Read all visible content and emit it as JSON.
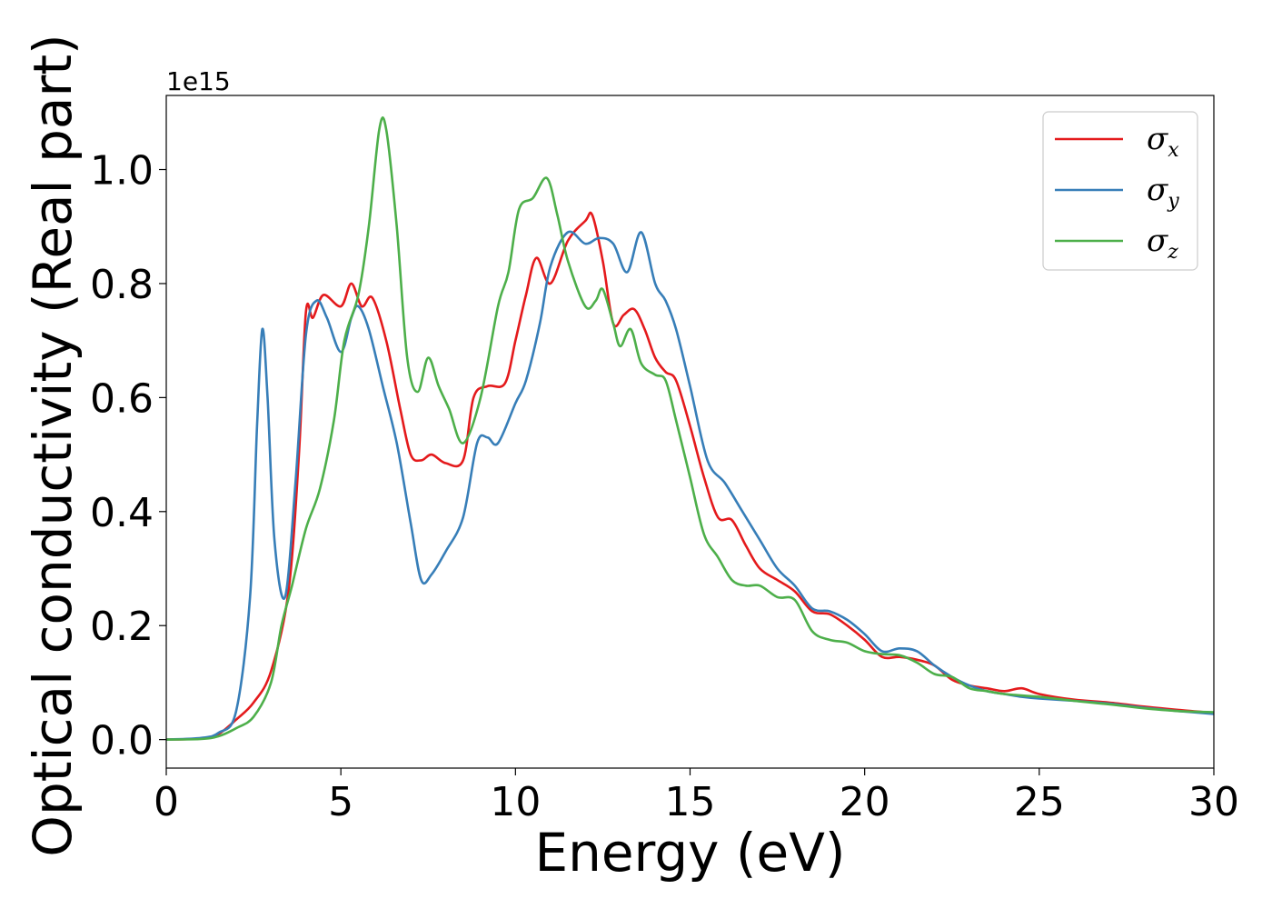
{
  "chart_data": {
    "type": "line",
    "title": "",
    "xlabel": "Energy (eV)",
    "ylabel": "Optical conductivity (Real part)",
    "y_offset_text": "1e15",
    "xlim": [
      0,
      30
    ],
    "ylim": [
      -0.05,
      1.13
    ],
    "xticks": [
      0,
      5,
      10,
      15,
      20,
      25,
      30
    ],
    "xtick_labels": [
      "0",
      "5",
      "10",
      "15",
      "20",
      "25",
      "30"
    ],
    "yticks": [
      0.0,
      0.2,
      0.4,
      0.6,
      0.8,
      1.0
    ],
    "ytick_labels": [
      "0.0",
      "0.2",
      "0.4",
      "0.6",
      "0.8",
      "1.0"
    ],
    "grid": false,
    "legend_position": "top-right",
    "series": [
      {
        "name": "σx",
        "symbol": "σ",
        "subscript": "x",
        "color": "#e41a1c",
        "points": [
          [
            0,
            0
          ],
          [
            1,
            0.002
          ],
          [
            1.5,
            0.01
          ],
          [
            2,
            0.035
          ],
          [
            2.5,
            0.065
          ],
          [
            3,
            0.12
          ],
          [
            3.5,
            0.26
          ],
          [
            3.8,
            0.5
          ],
          [
            4,
            0.75
          ],
          [
            4.2,
            0.74
          ],
          [
            4.5,
            0.78
          ],
          [
            5,
            0.76
          ],
          [
            5.3,
            0.8
          ],
          [
            5.6,
            0.76
          ],
          [
            5.9,
            0.775
          ],
          [
            6.3,
            0.7
          ],
          [
            6.7,
            0.58
          ],
          [
            7,
            0.5
          ],
          [
            7.3,
            0.49
          ],
          [
            7.6,
            0.5
          ],
          [
            8,
            0.485
          ],
          [
            8.5,
            0.49
          ],
          [
            8.8,
            0.6
          ],
          [
            9.2,
            0.62
          ],
          [
            9.7,
            0.625
          ],
          [
            10,
            0.7
          ],
          [
            10.3,
            0.78
          ],
          [
            10.6,
            0.845
          ],
          [
            11,
            0.8
          ],
          [
            11.5,
            0.875
          ],
          [
            12,
            0.91
          ],
          [
            12.2,
            0.92
          ],
          [
            12.5,
            0.84
          ],
          [
            12.8,
            0.73
          ],
          [
            13.1,
            0.745
          ],
          [
            13.4,
            0.755
          ],
          [
            13.7,
            0.72
          ],
          [
            14,
            0.67
          ],
          [
            14.3,
            0.645
          ],
          [
            14.6,
            0.63
          ],
          [
            15,
            0.55
          ],
          [
            15.4,
            0.46
          ],
          [
            15.8,
            0.39
          ],
          [
            16.2,
            0.385
          ],
          [
            16.6,
            0.34
          ],
          [
            17,
            0.3
          ],
          [
            17.5,
            0.28
          ],
          [
            18,
            0.26
          ],
          [
            18.5,
            0.225
          ],
          [
            19,
            0.22
          ],
          [
            19.5,
            0.2
          ],
          [
            20,
            0.175
          ],
          [
            20.5,
            0.145
          ],
          [
            21,
            0.145
          ],
          [
            21.5,
            0.14
          ],
          [
            22,
            0.13
          ],
          [
            22.5,
            0.105
          ],
          [
            23,
            0.095
          ],
          [
            23.5,
            0.09
          ],
          [
            24,
            0.085
          ],
          [
            24.5,
            0.09
          ],
          [
            25,
            0.08
          ],
          [
            26,
            0.07
          ],
          [
            27,
            0.065
          ],
          [
            28,
            0.058
          ],
          [
            29,
            0.052
          ],
          [
            30,
            0.047
          ]
        ]
      },
      {
        "name": "σy",
        "symbol": "σ",
        "subscript": "y",
        "color": "#377eb8",
        "points": [
          [
            0,
            0
          ],
          [
            1,
            0.003
          ],
          [
            1.5,
            0.012
          ],
          [
            2,
            0.05
          ],
          [
            2.4,
            0.25
          ],
          [
            2.6,
            0.55
          ],
          [
            2.75,
            0.72
          ],
          [
            2.9,
            0.6
          ],
          [
            3.1,
            0.35
          ],
          [
            3.4,
            0.25
          ],
          [
            3.7,
            0.45
          ],
          [
            4,
            0.71
          ],
          [
            4.3,
            0.77
          ],
          [
            4.6,
            0.74
          ],
          [
            5,
            0.68
          ],
          [
            5.3,
            0.74
          ],
          [
            5.5,
            0.76
          ],
          [
            5.8,
            0.72
          ],
          [
            6.2,
            0.62
          ],
          [
            6.6,
            0.52
          ],
          [
            7,
            0.38
          ],
          [
            7.3,
            0.28
          ],
          [
            7.6,
            0.29
          ],
          [
            8,
            0.33
          ],
          [
            8.5,
            0.39
          ],
          [
            8.9,
            0.52
          ],
          [
            9.2,
            0.53
          ],
          [
            9.5,
            0.52
          ],
          [
            10,
            0.59
          ],
          [
            10.3,
            0.63
          ],
          [
            10.7,
            0.73
          ],
          [
            11,
            0.83
          ],
          [
            11.5,
            0.89
          ],
          [
            12,
            0.87
          ],
          [
            12.4,
            0.88
          ],
          [
            12.8,
            0.87
          ],
          [
            13.2,
            0.82
          ],
          [
            13.6,
            0.89
          ],
          [
            14,
            0.8
          ],
          [
            14.3,
            0.77
          ],
          [
            14.6,
            0.72
          ],
          [
            15,
            0.62
          ],
          [
            15.5,
            0.49
          ],
          [
            16,
            0.45
          ],
          [
            16.5,
            0.4
          ],
          [
            17,
            0.35
          ],
          [
            17.5,
            0.3
          ],
          [
            18,
            0.27
          ],
          [
            18.5,
            0.23
          ],
          [
            19,
            0.225
          ],
          [
            19.5,
            0.21
          ],
          [
            20,
            0.185
          ],
          [
            20.5,
            0.155
          ],
          [
            21,
            0.16
          ],
          [
            21.5,
            0.155
          ],
          [
            22,
            0.13
          ],
          [
            22.5,
            0.11
          ],
          [
            23,
            0.095
          ],
          [
            23.5,
            0.085
          ],
          [
            24,
            0.08
          ],
          [
            24.5,
            0.075
          ],
          [
            25,
            0.072
          ],
          [
            26,
            0.068
          ],
          [
            27,
            0.063
          ],
          [
            28,
            0.056
          ],
          [
            29,
            0.05
          ],
          [
            30,
            0.045
          ]
        ]
      },
      {
        "name": "σz",
        "symbol": "σ",
        "subscript": "z",
        "color": "#4daf4a",
        "points": [
          [
            0,
            0
          ],
          [
            1,
            0.001
          ],
          [
            1.5,
            0.006
          ],
          [
            2,
            0.02
          ],
          [
            2.5,
            0.04
          ],
          [
            3,
            0.1
          ],
          [
            3.3,
            0.2
          ],
          [
            3.6,
            0.27
          ],
          [
            4,
            0.37
          ],
          [
            4.4,
            0.44
          ],
          [
            4.8,
            0.56
          ],
          [
            5.1,
            0.7
          ],
          [
            5.5,
            0.78
          ],
          [
            5.8,
            0.9
          ],
          [
            6.1,
            1.07
          ],
          [
            6.3,
            1.07
          ],
          [
            6.6,
            0.9
          ],
          [
            6.9,
            0.67
          ],
          [
            7.2,
            0.61
          ],
          [
            7.5,
            0.67
          ],
          [
            7.8,
            0.62
          ],
          [
            8.1,
            0.58
          ],
          [
            8.5,
            0.52
          ],
          [
            9,
            0.6
          ],
          [
            9.5,
            0.76
          ],
          [
            9.8,
            0.82
          ],
          [
            10.1,
            0.93
          ],
          [
            10.5,
            0.95
          ],
          [
            10.9,
            0.985
          ],
          [
            11.2,
            0.92
          ],
          [
            11.5,
            0.84
          ],
          [
            12,
            0.76
          ],
          [
            12.3,
            0.77
          ],
          [
            12.5,
            0.79
          ],
          [
            12.8,
            0.73
          ],
          [
            13,
            0.69
          ],
          [
            13.3,
            0.72
          ],
          [
            13.6,
            0.66
          ],
          [
            14,
            0.64
          ],
          [
            14.3,
            0.63
          ],
          [
            14.6,
            0.56
          ],
          [
            15,
            0.46
          ],
          [
            15.4,
            0.36
          ],
          [
            15.8,
            0.32
          ],
          [
            16.2,
            0.28
          ],
          [
            16.6,
            0.27
          ],
          [
            17,
            0.27
          ],
          [
            17.5,
            0.25
          ],
          [
            18,
            0.245
          ],
          [
            18.5,
            0.19
          ],
          [
            19,
            0.175
          ],
          [
            19.5,
            0.17
          ],
          [
            20,
            0.155
          ],
          [
            20.5,
            0.15
          ],
          [
            21,
            0.148
          ],
          [
            21.5,
            0.135
          ],
          [
            22,
            0.115
          ],
          [
            22.5,
            0.11
          ],
          [
            23,
            0.09
          ],
          [
            23.5,
            0.085
          ],
          [
            24,
            0.08
          ],
          [
            25,
            0.075
          ],
          [
            26,
            0.068
          ],
          [
            27,
            0.062
          ],
          [
            28,
            0.055
          ],
          [
            29,
            0.05
          ],
          [
            30,
            0.048
          ]
        ]
      }
    ]
  }
}
